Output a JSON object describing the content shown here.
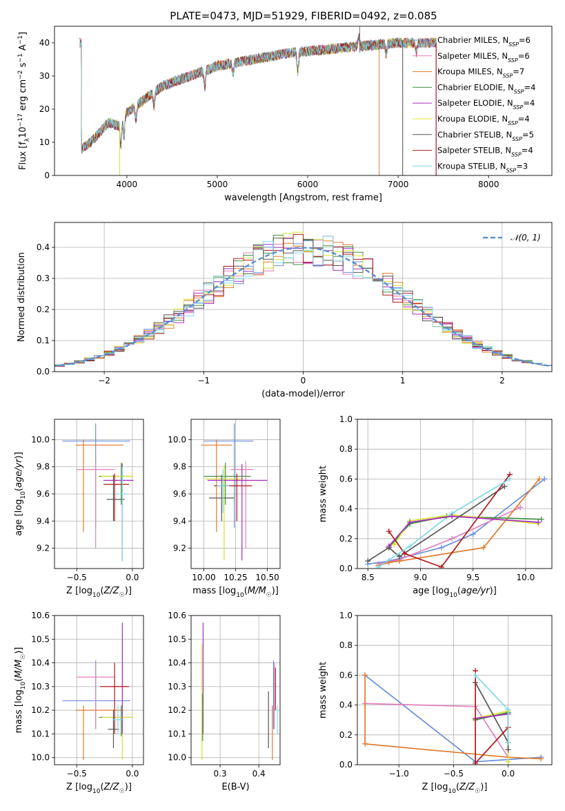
{
  "figure_title": "PLATE=0473, MJD=51929, FIBERID=0492, z=0.085",
  "colors": {
    "Chabrier MILES": "#6a8fd9",
    "Salpeter MILES": "#e07fbd",
    "Kroupa MILES": "#e0782b",
    "Chabrier ELODIE": "#3e8f3e",
    "Salpeter ELODIE": "#a52bbf",
    "Kroupa ELODIE": "#d8e030",
    "Chabrier STELIB": "#555555",
    "Salpeter STELIB": "#b01818",
    "Kroupa STELIB": "#7fd8e8",
    "normal": "#5b8ed6"
  },
  "chart_data": [
    {
      "id": "spectrum",
      "type": "line",
      "xlabel": "wavelength [Angstrom, rest frame]",
      "ylabel": "Flux [f_λ10^-17 erg cm^-2 s^-1 A^-1]",
      "xlim": [
        3200,
        8700
      ],
      "ylim": [
        0,
        45
      ],
      "xticks": [
        4000,
        5000,
        6000,
        7000,
        8000
      ],
      "yticks": [
        0,
        10,
        20,
        30,
        40
      ],
      "grid": false,
      "legend_loc": "top-right",
      "legend": [
        {
          "model": "Chabrier MILES",
          "nssp": "6"
        },
        {
          "model": "Salpeter MILES",
          "nssp": "6"
        },
        {
          "model": "Kroupa MILES",
          "nssp": "7"
        },
        {
          "model": "Chabrier ELODIE",
          "nssp": "4"
        },
        {
          "model": "Salpeter ELODIE",
          "nssp": "4"
        },
        {
          "model": "Kroupa ELODIE",
          "nssp": "4"
        },
        {
          "model": "Chabrier STELIB",
          "nssp": "5"
        },
        {
          "model": "Salpeter STELIB",
          "nssp": "4"
        },
        {
          "model": "Kroupa STELIB",
          "nssp": "3"
        }
      ],
      "continuum_points": [
        [
          3500,
          8
        ],
        [
          3600,
          10
        ],
        [
          3700,
          13
        ],
        [
          3800,
          16
        ],
        [
          3900,
          15
        ],
        [
          4000,
          19
        ],
        [
          4200,
          23
        ],
        [
          4400,
          27
        ],
        [
          4600,
          29
        ],
        [
          4800,
          31
        ],
        [
          5000,
          33
        ],
        [
          5200,
          34
        ],
        [
          5400,
          35
        ],
        [
          5600,
          36
        ],
        [
          5800,
          37
        ],
        [
          6000,
          37.5
        ],
        [
          6200,
          38
        ],
        [
          6400,
          38.5
        ],
        [
          6600,
          39
        ],
        [
          6800,
          39.5
        ],
        [
          7000,
          40
        ],
        [
          7200,
          40
        ],
        [
          7400,
          40
        ]
      ]
    },
    {
      "id": "residuals",
      "type": "histogram",
      "xlabel": "(data-model)/error",
      "ylabel": "Normed distribution",
      "xlim": [
        -2.5,
        2.5
      ],
      "ylim": [
        0,
        0.48
      ],
      "xticks": [
        -2,
        -1,
        0,
        1,
        2
      ],
      "yticks": [
        0.0,
        0.1,
        0.2,
        0.3,
        0.4
      ],
      "grid": true,
      "legend_loc": "top-right",
      "legend": [
        "𝒩(0, 1)"
      ],
      "bin_width": 0.1,
      "normal": {
        "mu": 0,
        "sigma": 1
      }
    },
    {
      "id": "z_vs_age",
      "type": "errorbar",
      "xlabel": "Z [log10(Z/Z☉)]",
      "ylabel": "age  [log10(age/yr)]",
      "xlim": [
        -0.7,
        0.1
      ],
      "ylim": [
        9.05,
        10.15
      ],
      "xticks": [
        -0.5,
        0.0
      ],
      "yticks": [
        9.2,
        9.4,
        9.6,
        9.8,
        10.0
      ],
      "grid": true,
      "points": [
        {
          "model": "Chabrier MILES",
          "x": -0.33,
          "xerr": [
            0.3,
            0.31
          ],
          "y": 9.99,
          "yerr": [
            0.64,
            0.13
          ]
        },
        {
          "model": "Kroupa MILES",
          "x": -0.44,
          "xerr": [
            0.07,
            0.36
          ],
          "y": 9.96,
          "yerr": [
            0.64,
            0.04
          ]
        },
        {
          "model": "Salpeter MILES",
          "x": -0.33,
          "xerr": [
            0.17,
            0.17
          ],
          "y": 9.78,
          "yerr": [
            0.58,
            0.06
          ]
        },
        {
          "model": "Chabrier ELODIE",
          "x": -0.1,
          "xerr": [
            0.2,
            0.1
          ],
          "y": 9.73,
          "yerr": [
            0.21,
            0.1
          ]
        },
        {
          "model": "Kroupa ELODIE",
          "x": -0.09,
          "xerr": [
            0.19,
            0.1
          ],
          "y": 9.73,
          "yerr": [
            0.61,
            0.1
          ]
        },
        {
          "model": "Salpeter ELODIE",
          "x": -0.09,
          "xerr": [
            0.17,
            0.1
          ],
          "y": 9.7,
          "yerr": [
            0.59,
            0.12
          ]
        },
        {
          "model": "Salpeter STELIB",
          "x": -0.16,
          "xerr": [
            0.1,
            0.13
          ],
          "y": 9.67,
          "yerr": [
            0.27,
            0.08
          ]
        },
        {
          "model": "Chabrier STELIB",
          "x": -0.17,
          "xerr": [
            0.06,
            0.1
          ],
          "y": 9.56,
          "yerr": [
            0.16,
            0.18
          ]
        },
        {
          "model": "Kroupa STELIB",
          "x": -0.09,
          "xerr": [
            0.05,
            0.05
          ],
          "y": 9.6,
          "yerr": [
            0.5,
            0.2
          ]
        }
      ]
    },
    {
      "id": "mass_vs_age",
      "type": "errorbar",
      "xlabel": "mass [log10(M/M☉)]",
      "ylabel": "",
      "xlim": [
        9.9,
        10.6
      ],
      "ylim": [
        9.05,
        10.15
      ],
      "xticks": [
        10.0,
        10.25,
        10.5
      ],
      "yticks": [
        9.2,
        9.4,
        9.6,
        9.8,
        10.0
      ],
      "grid": true,
      "points": [
        {
          "model": "Chabrier MILES",
          "x": 10.24,
          "xerr": [
            0.24,
            0.15
          ],
          "y": 9.99,
          "yerr": [
            0.64,
            0.13
          ]
        },
        {
          "model": "Kroupa MILES",
          "x": 10.1,
          "xerr": [
            0.12,
            0.12
          ],
          "y": 9.96,
          "yerr": [
            0.64,
            0.04
          ]
        },
        {
          "model": "Salpeter MILES",
          "x": 10.33,
          "xerr": [
            0.12,
            0.06
          ],
          "y": 9.78,
          "yerr": [
            0.58,
            0.06
          ]
        },
        {
          "model": "Chabrier ELODIE",
          "x": 10.17,
          "xerr": [
            0.17,
            0.2
          ],
          "y": 9.73,
          "yerr": [
            0.21,
            0.1
          ]
        },
        {
          "model": "Kroupa ELODIE",
          "x": 10.16,
          "xerr": [
            0.15,
            0.15
          ],
          "y": 9.71,
          "yerr": [
            0.6,
            0.1
          ]
        },
        {
          "model": "Salpeter ELODIE",
          "x": 10.3,
          "xerr": [
            0.27,
            0.2
          ],
          "y": 9.7,
          "yerr": [
            0.59,
            0.12
          ]
        },
        {
          "model": "Salpeter STELIB",
          "x": 10.26,
          "xerr": [
            0.18,
            0.12
          ],
          "y": 9.66,
          "yerr": [
            0.26,
            0.09
          ]
        },
        {
          "model": "Chabrier STELIB",
          "x": 10.14,
          "xerr": [
            0.1,
            0.1
          ],
          "y": 9.57,
          "yerr": [
            0.17,
            0.17
          ]
        },
        {
          "model": "Kroupa STELIB",
          "x": 10.15,
          "xerr": [
            0.05,
            0.05
          ],
          "y": 9.66,
          "yerr": [
            0.2,
            0.12
          ]
        }
      ]
    },
    {
      "id": "age_vs_weight",
      "type": "line",
      "xlabel": "age  [log10(age/yr)]",
      "ylabel": "mass weight",
      "xlim": [
        8.4,
        10.25
      ],
      "ylim": [
        0,
        1.0
      ],
      "xticks": [
        8.5,
        9.0,
        9.5,
        10.0
      ],
      "yticks": [
        0.0,
        0.2,
        0.4,
        0.6,
        0.8,
        1.0
      ],
      "grid": true,
      "series": [
        {
          "model": "Chabrier MILES",
          "x": [
            8.5,
            8.7,
            9.2,
            9.5,
            10.18
          ],
          "y": [
            0.03,
            0.05,
            0.14,
            0.23,
            0.6
          ]
        },
        {
          "model": "Salpeter MILES",
          "x": [
            8.6,
            8.8,
            9.3,
            9.95
          ],
          "y": [
            0.03,
            0.06,
            0.2,
            0.41
          ]
        },
        {
          "model": "Kroupa MILES",
          "x": [
            8.6,
            8.7,
            8.8,
            9.6,
            10.13
          ],
          "y": [
            0.02,
            0.04,
            0.05,
            0.14,
            0.6
          ]
        },
        {
          "model": "Chabrier ELODIE",
          "x": [
            8.7,
            8.9,
            9.25,
            10.15
          ],
          "y": [
            0.14,
            0.3,
            0.35,
            0.33
          ]
        },
        {
          "model": "Kroupa ELODIE",
          "x": [
            8.75,
            8.9,
            9.3,
            10.12
          ],
          "y": [
            0.16,
            0.32,
            0.36,
            0.3
          ]
        },
        {
          "model": "Chabrier STELIB",
          "x": [
            8.5,
            8.7,
            8.8,
            9.8
          ],
          "y": [
            0.05,
            0.14,
            0.08,
            0.55
          ]
        },
        {
          "model": "Salpeter STELIB",
          "x": [
            8.7,
            8.85,
            9.2,
            9.85
          ],
          "y": [
            0.25,
            0.1,
            0.01,
            0.63
          ]
        },
        {
          "model": "Kroupa STELIB",
          "x": [
            8.6,
            8.9,
            9.3,
            9.85
          ],
          "y": [
            0.01,
            0.15,
            0.37,
            0.6
          ]
        },
        {
          "model": "Salpeter ELODIE",
          "x": [
            8.7,
            8.9,
            9.3,
            10.12
          ],
          "y": [
            0.15,
            0.31,
            0.35,
            0.31
          ]
        }
      ]
    },
    {
      "id": "z_vs_mass",
      "type": "errorbar",
      "xlabel": "Z [log10(Z/Z☉)]",
      "ylabel": "mass [log10(M/M☉)]",
      "xlim": [
        -0.7,
        0.1
      ],
      "ylim": [
        9.97,
        10.6
      ],
      "xticks": [
        -0.5,
        0.0
      ],
      "yticks": [
        10.0,
        10.1,
        10.2,
        10.3,
        10.4,
        10.5,
        10.6
      ],
      "grid": true,
      "points": [
        {
          "model": "Chabrier MILES",
          "x": -0.33,
          "xerr": [
            0.3,
            0.31
          ],
          "y": 10.24,
          "yerr": [
            0.12,
            0.17
          ]
        },
        {
          "model": "Kroupa MILES",
          "x": -0.44,
          "xerr": [
            0.07,
            0.36
          ],
          "y": 10.2,
          "yerr": [
            0.21,
            0.02
          ]
        },
        {
          "model": "Salpeter MILES",
          "x": -0.33,
          "xerr": [
            0.17,
            0.17
          ],
          "y": 10.34,
          "yerr": [
            0.22,
            0.06
          ]
        },
        {
          "model": "Chabrier ELODIE",
          "x": -0.1,
          "xerr": [
            0.2,
            0.1
          ],
          "y": 10.17,
          "yerr": [
            0.08,
            0.05
          ]
        },
        {
          "model": "Kroupa ELODIE",
          "x": -0.09,
          "xerr": [
            0.18,
            0.1
          ],
          "y": 10.17,
          "yerr": [
            0.18,
            0.33
          ]
        },
        {
          "model": "Salpeter ELODIE",
          "x": -0.09,
          "xerr": [
            0.1,
            0.05
          ],
          "y": 10.3,
          "yerr": [
            0.2,
            0.27
          ]
        },
        {
          "model": "Salpeter STELIB",
          "x": -0.16,
          "xerr": [
            0.13,
            0.13
          ],
          "y": 10.3,
          "yerr": [
            0.2,
            0.1
          ]
        },
        {
          "model": "Chabrier STELIB",
          "x": -0.17,
          "xerr": [
            0.05,
            0.05
          ],
          "y": 10.12,
          "yerr": [
            0.08,
            0.08
          ]
        },
        {
          "model": "Kroupa STELIB",
          "x": -0.13,
          "xerr": [
            0.05,
            0.05
          ],
          "y": 10.16,
          "yerr": [
            0.06,
            0.06
          ]
        }
      ]
    },
    {
      "id": "ebv_vs_mass",
      "type": "errorbar",
      "xlabel": "E(B-V)",
      "ylabel": "",
      "xlim": [
        0.225,
        0.455
      ],
      "ylim": [
        9.97,
        10.6
      ],
      "xticks": [
        0.3,
        0.4
      ],
      "yticks": [
        10.0,
        10.1,
        10.2,
        10.3,
        10.4,
        10.5,
        10.6
      ],
      "grid": true,
      "points": [
        {
          "model": "Salpeter ELODIE",
          "x": 0.256,
          "xerr": [
            0,
            0
          ],
          "y": 10.3,
          "yerr": [
            0.2,
            0.27
          ]
        },
        {
          "model": "Kroupa ELODIE",
          "x": 0.253,
          "xerr": [
            0,
            0
          ],
          "y": 10.17,
          "yerr": [
            0.18,
            0.31
          ]
        },
        {
          "model": "Chabrier ELODIE",
          "x": 0.255,
          "xerr": [
            0,
            0
          ],
          "y": 10.17,
          "yerr": [
            0.1,
            0.1
          ]
        },
        {
          "model": "Chabrier STELIB",
          "x": 0.425,
          "xerr": [
            0,
            0
          ],
          "y": 10.12,
          "yerr": [
            0.08,
            0.16
          ]
        },
        {
          "model": "Chabrier MILES",
          "x": 0.438,
          "xerr": [
            0,
            0
          ],
          "y": 10.24,
          "yerr": [
            0.12,
            0.17
          ]
        },
        {
          "model": "Kroupa MILES",
          "x": 0.435,
          "xerr": [
            0,
            0
          ],
          "y": 10.2,
          "yerr": [
            0.21,
            0.02
          ]
        },
        {
          "model": "Salpeter STELIB",
          "x": 0.443,
          "xerr": [
            0,
            0
          ],
          "y": 10.3,
          "yerr": [
            0.1,
            0.08
          ]
        },
        {
          "model": "Salpeter MILES",
          "x": 0.44,
          "xerr": [
            0,
            0
          ],
          "y": 10.34,
          "yerr": [
            0.22,
            0.06
          ]
        },
        {
          "model": "Kroupa STELIB",
          "x": 0.448,
          "xerr": [
            0,
            0
          ],
          "y": 10.16,
          "yerr": [
            0.06,
            0.06
          ]
        }
      ]
    },
    {
      "id": "z_vs_weight",
      "type": "line",
      "xlabel": "Z [log10(Z/Z☉)]",
      "ylabel": "mass weight",
      "xlim": [
        -1.38,
        0.4
      ],
      "ylim": [
        0,
        1.0
      ],
      "xticks": [
        -1.0,
        -0.5,
        0.0
      ],
      "yticks": [
        0.0,
        0.2,
        0.4,
        0.6,
        0.8,
        1.0
      ],
      "grid": true,
      "series": [
        {
          "model": "Chabrier MILES",
          "x": [
            -1.31,
            -0.3,
            0.3
          ],
          "y": [
            0.6,
            0.02,
            0.05
          ]
        },
        {
          "model": "Salpeter MILES",
          "x": [
            -1.31,
            -0.3,
            0.0
          ],
          "y": [
            0.41,
            0.39,
            0.05
          ]
        },
        {
          "model": "Kroupa MILES",
          "x": [
            -1.31,
            -1.31,
            0.0,
            0.3
          ],
          "y": [
            0.6,
            0.14,
            0.05,
            0.04
          ]
        },
        {
          "model": "Chabrier ELODIE",
          "x": [
            -0.3,
            0.0,
            0.0
          ],
          "y": [
            0.3,
            0.35,
            0.1
          ]
        },
        {
          "model": "Kroupa ELODIE",
          "x": [
            -0.3,
            0.0,
            0.0
          ],
          "y": [
            0.31,
            0.36,
            0.02
          ]
        },
        {
          "model": "Salpeter ELODIE",
          "x": [
            -0.3,
            0.0,
            0.0
          ],
          "y": [
            0.31,
            0.34,
            0.15
          ]
        },
        {
          "model": "Chabrier STELIB",
          "x": [
            -0.3,
            0.0,
            0.0
          ],
          "y": [
            0.55,
            0.15,
            0.1
          ]
        },
        {
          "model": "Salpeter STELIB",
          "x": [
            -0.3,
            -0.3,
            0.0
          ],
          "y": [
            0.63,
            0.01,
            0.25
          ]
        },
        {
          "model": "Kroupa STELIB",
          "x": [
            -0.3,
            0.0,
            0.0
          ],
          "y": [
            0.6,
            0.37,
            0.15
          ]
        }
      ]
    }
  ]
}
